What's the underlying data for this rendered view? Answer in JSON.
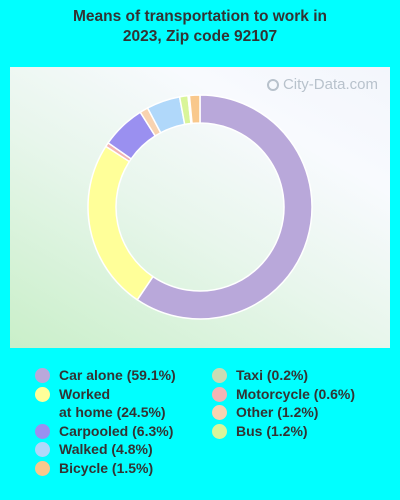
{
  "title_line1": "Means of transportation to work in",
  "title_line2": "2023, Zip code 92107",
  "watermark": "City-Data.com",
  "chart_data": {
    "type": "pie",
    "variant": "donut",
    "title": "Means of transportation to work in 2023, Zip code 92107",
    "slices": [
      {
        "label": "Car alone (59.1%)",
        "value": 59.1,
        "color": "#B9A8DA"
      },
      {
        "label": "Worked\nat home (24.5%)",
        "value": 24.5,
        "color": "#FFFF99"
      },
      {
        "label": "Motorcycle (0.6%)",
        "value": 0.6,
        "color": "#F2B4B4"
      },
      {
        "label": "Carpooled (6.3%)",
        "value": 6.3,
        "color": "#9A90F0"
      },
      {
        "label": "Other (1.2%)",
        "value": 1.2,
        "color": "#F8D3B0"
      },
      {
        "label": "Walked (4.8%)",
        "value": 4.8,
        "color": "#B0D8FA"
      },
      {
        "label": "Bus (1.2%)",
        "value": 1.2,
        "color": "#D9F59A"
      },
      {
        "label": "Taxi (0.2%)",
        "value": 0.2,
        "color": "#C8DCB4"
      },
      {
        "label": "Bicycle (1.5%)",
        "value": 1.5,
        "color": "#F9C88C"
      }
    ],
    "legend_left": [
      {
        "label": "Car alone (59.1%)",
        "color": "#B9A8DA"
      },
      {
        "label": "Worked\nat home (24.5%)",
        "color": "#FFFF99"
      },
      {
        "label": "Carpooled (6.3%)",
        "color": "#9A90F0"
      },
      {
        "label": "Walked (4.8%)",
        "color": "#B0D8FA"
      },
      {
        "label": "Bicycle (1.5%)",
        "color": "#F9C88C"
      }
    ],
    "legend_right": [
      {
        "label": "Taxi (0.2%)",
        "color": "#C8DCB4"
      },
      {
        "label": "Motorcycle (0.6%)",
        "color": "#F2B4B4"
      },
      {
        "label": "Other (1.2%)",
        "color": "#F8D3B0"
      },
      {
        "label": "Bus (1.2%)",
        "color": "#D9F59A"
      }
    ],
    "legend_placement": "bottom"
  }
}
